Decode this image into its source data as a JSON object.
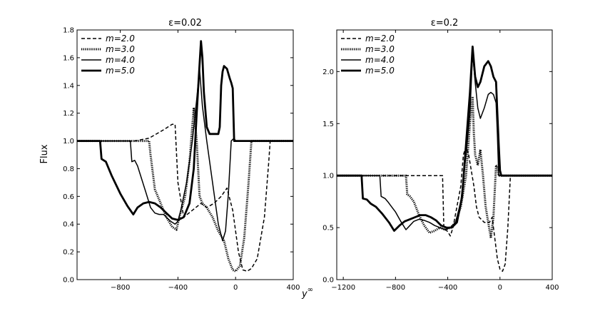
{
  "figure": {
    "ylabel": "Flux",
    "xlabel": "y^∞"
  },
  "chart_data": [
    {
      "type": "line",
      "title": "ε=0.02",
      "xlim": [
        -1100,
        400
      ],
      "ylim": [
        0.0,
        1.8
      ],
      "xticks": [
        -800,
        -400,
        0,
        400
      ],
      "xtick_labels": [
        "−800",
        "−400",
        "0",
        "400"
      ],
      "yticks": [
        0.0,
        0.2,
        0.4,
        0.6,
        0.8,
        1.0,
        1.2,
        1.4,
        1.6,
        1.8
      ],
      "ytick_labels": [
        "0.0",
        "0.2",
        "0.4",
        "0.6",
        "0.8",
        "1.0",
        "1.2",
        "1.4",
        "1.6",
        "1.8"
      ],
      "legend": "top-left",
      "series": [
        {
          "name": "m=2.0",
          "style": "dashed",
          "x": [
            -1100,
            -700,
            -600,
            -500,
            -440,
            -420,
            -400,
            -360,
            -300,
            -240,
            -200,
            -150,
            -100,
            -60,
            -20,
            20,
            50,
            80,
            110,
            150,
            200,
            230,
            240,
            250,
            400
          ],
          "y": [
            1.0,
            1.0,
            1.02,
            1.08,
            1.12,
            1.12,
            0.7,
            0.45,
            0.5,
            0.55,
            0.52,
            0.55,
            0.6,
            0.66,
            0.5,
            0.2,
            0.07,
            0.06,
            0.08,
            0.15,
            0.45,
            0.85,
            1.0,
            1.0,
            1.0
          ]
        },
        {
          "name": "m=3.0",
          "style": "dotted",
          "x": [
            -1100,
            -600,
            -590,
            -560,
            -520,
            -480,
            -440,
            -410,
            -390,
            -350,
            -320,
            -290,
            -270,
            -250,
            -230,
            -200,
            -160,
            -120,
            -80,
            -50,
            -20,
            0,
            30,
            60,
            90,
            110,
            400
          ],
          "y": [
            1.0,
            1.0,
            0.9,
            0.65,
            0.55,
            0.45,
            0.38,
            0.36,
            0.45,
            0.6,
            0.85,
            1.24,
            1.0,
            0.6,
            0.55,
            0.52,
            0.45,
            0.35,
            0.28,
            0.15,
            0.07,
            0.06,
            0.1,
            0.3,
            0.7,
            1.0,
            1.0
          ]
        },
        {
          "name": "m=4.0",
          "style": "thin",
          "x": [
            -1100,
            -730,
            -720,
            -700,
            -680,
            -650,
            -620,
            -590,
            -560,
            -530,
            -500,
            -480,
            -450,
            -420,
            -400,
            -380,
            -340,
            -300,
            -270,
            -250,
            -230,
            -200,
            -160,
            -120,
            -90,
            -70,
            -50,
            -30,
            -10,
            0,
            20,
            400
          ],
          "y": [
            1.0,
            1.0,
            0.85,
            0.86,
            0.82,
            0.72,
            0.62,
            0.52,
            0.48,
            0.47,
            0.47,
            0.45,
            0.42,
            0.4,
            0.42,
            0.5,
            0.7,
            1.0,
            1.3,
            1.52,
            1.25,
            1.0,
            0.7,
            0.4,
            0.28,
            0.35,
            0.62,
            1.0,
            1.02,
            1.0,
            1.0,
            1.0
          ]
        },
        {
          "name": "m=5.0",
          "style": "thick",
          "x": [
            -1100,
            -940,
            -930,
            -900,
            -880,
            -860,
            -800,
            -750,
            -710,
            -680,
            -640,
            -600,
            -560,
            -520,
            -480,
            -440,
            -400,
            -360,
            -320,
            -290,
            -270,
            -250,
            -240,
            -230,
            -220,
            -200,
            -180,
            -150,
            -120,
            -110,
            -100,
            -90,
            -80,
            -60,
            -40,
            -30,
            -20,
            -10,
            400
          ],
          "y": [
            1.0,
            1.0,
            0.87,
            0.85,
            0.8,
            0.75,
            0.62,
            0.53,
            0.47,
            0.52,
            0.55,
            0.56,
            0.55,
            0.52,
            0.48,
            0.44,
            0.43,
            0.45,
            0.55,
            0.8,
            1.2,
            1.55,
            1.72,
            1.6,
            1.35,
            1.1,
            1.05,
            1.05,
            1.05,
            1.1,
            1.4,
            1.5,
            1.54,
            1.52,
            1.45,
            1.42,
            1.38,
            1.0,
            1.0
          ]
        }
      ]
    },
    {
      "type": "line",
      "title": "ε=0.2",
      "xlim": [
        -1250,
        400
      ],
      "ylim": [
        0.0,
        2.4
      ],
      "xticks": [
        -1200,
        -800,
        -400,
        0,
        400
      ],
      "xtick_labels": [
        "−1200",
        "−800",
        "−400",
        "0",
        "400"
      ],
      "yticks": [
        0.0,
        0.5,
        1.0,
        1.5,
        2.0
      ],
      "ytick_labels": [
        "0.0",
        "0.5",
        "1.0",
        "1.5",
        "2.0"
      ],
      "legend": "top-left",
      "series": [
        {
          "name": "m=2.0",
          "style": "dashed",
          "x": [
            -1250,
            -440,
            -430,
            -400,
            -380,
            -360,
            -300,
            -280,
            -260,
            -240,
            -200,
            -180,
            -160,
            -120,
            -80,
            -60,
            -40,
            -20,
            0,
            20,
            40,
            60,
            80,
            400
          ],
          "y": [
            1.0,
            1.0,
            0.5,
            0.46,
            0.42,
            0.5,
            0.9,
            1.2,
            1.28,
            1.2,
            0.9,
            0.7,
            0.6,
            0.55,
            0.55,
            0.6,
            0.4,
            0.2,
            0.1,
            0.08,
            0.15,
            0.5,
            1.0,
            1.0
          ]
        },
        {
          "name": "m=3.0",
          "style": "dotted",
          "x": [
            -1250,
            -720,
            -710,
            -690,
            -660,
            -620,
            -580,
            -540,
            -500,
            -460,
            -420,
            -380,
            -340,
            -300,
            -260,
            -230,
            -210,
            -200,
            -190,
            -170,
            -150,
            -130,
            -110,
            -90,
            -70,
            -50,
            -30,
            -20,
            -10,
            0,
            400
          ],
          "y": [
            1.0,
            1.0,
            0.82,
            0.8,
            0.75,
            0.62,
            0.52,
            0.45,
            0.47,
            0.5,
            0.48,
            0.5,
            0.55,
            0.7,
            1.0,
            1.5,
            1.76,
            1.4,
            1.2,
            1.1,
            1.25,
            1.0,
            0.7,
            0.55,
            0.4,
            0.6,
            1.1,
            1.08,
            1.0,
            1.0,
            1.0
          ]
        },
        {
          "name": "m=4.0",
          "style": "thin",
          "x": [
            -1250,
            -920,
            -910,
            -880,
            -860,
            -830,
            -800,
            -760,
            -720,
            -690,
            -660,
            -620,
            -580,
            -540,
            -500,
            -460,
            -420,
            -380,
            -340,
            -300,
            -260,
            -230,
            -210,
            -190,
            -170,
            -150,
            -120,
            -90,
            -70,
            -50,
            -30,
            -20,
            -10,
            0,
            400
          ],
          "y": [
            1.0,
            1.0,
            0.8,
            0.78,
            0.75,
            0.7,
            0.65,
            0.56,
            0.48,
            0.52,
            0.56,
            0.58,
            0.57,
            0.55,
            0.52,
            0.5,
            0.48,
            0.5,
            0.55,
            0.75,
            1.2,
            1.6,
            2.18,
            1.9,
            1.65,
            1.55,
            1.65,
            1.78,
            1.8,
            1.78,
            1.7,
            1.4,
            1.0,
            1.0,
            1.0
          ]
        },
        {
          "name": "m=5.0",
          "style": "thick",
          "x": [
            -1250,
            -1060,
            -1050,
            -1020,
            -990,
            -950,
            -900,
            -850,
            -810,
            -770,
            -730,
            -690,
            -650,
            -610,
            -570,
            -530,
            -490,
            -450,
            -410,
            -370,
            -330,
            -290,
            -260,
            -230,
            -210,
            -190,
            -170,
            -150,
            -120,
            -90,
            -70,
            -50,
            -30,
            -20,
            -10,
            0,
            10,
            400
          ],
          "y": [
            1.0,
            1.0,
            0.78,
            0.77,
            0.73,
            0.7,
            0.63,
            0.55,
            0.47,
            0.52,
            0.56,
            0.58,
            0.6,
            0.62,
            0.62,
            0.6,
            0.57,
            0.52,
            0.5,
            0.5,
            0.55,
            0.8,
            1.3,
            1.8,
            2.24,
            1.95,
            1.85,
            1.9,
            2.05,
            2.1,
            2.05,
            1.95,
            1.9,
            1.6,
            1.3,
            1.05,
            1.0,
            1.0
          ]
        }
      ]
    }
  ]
}
